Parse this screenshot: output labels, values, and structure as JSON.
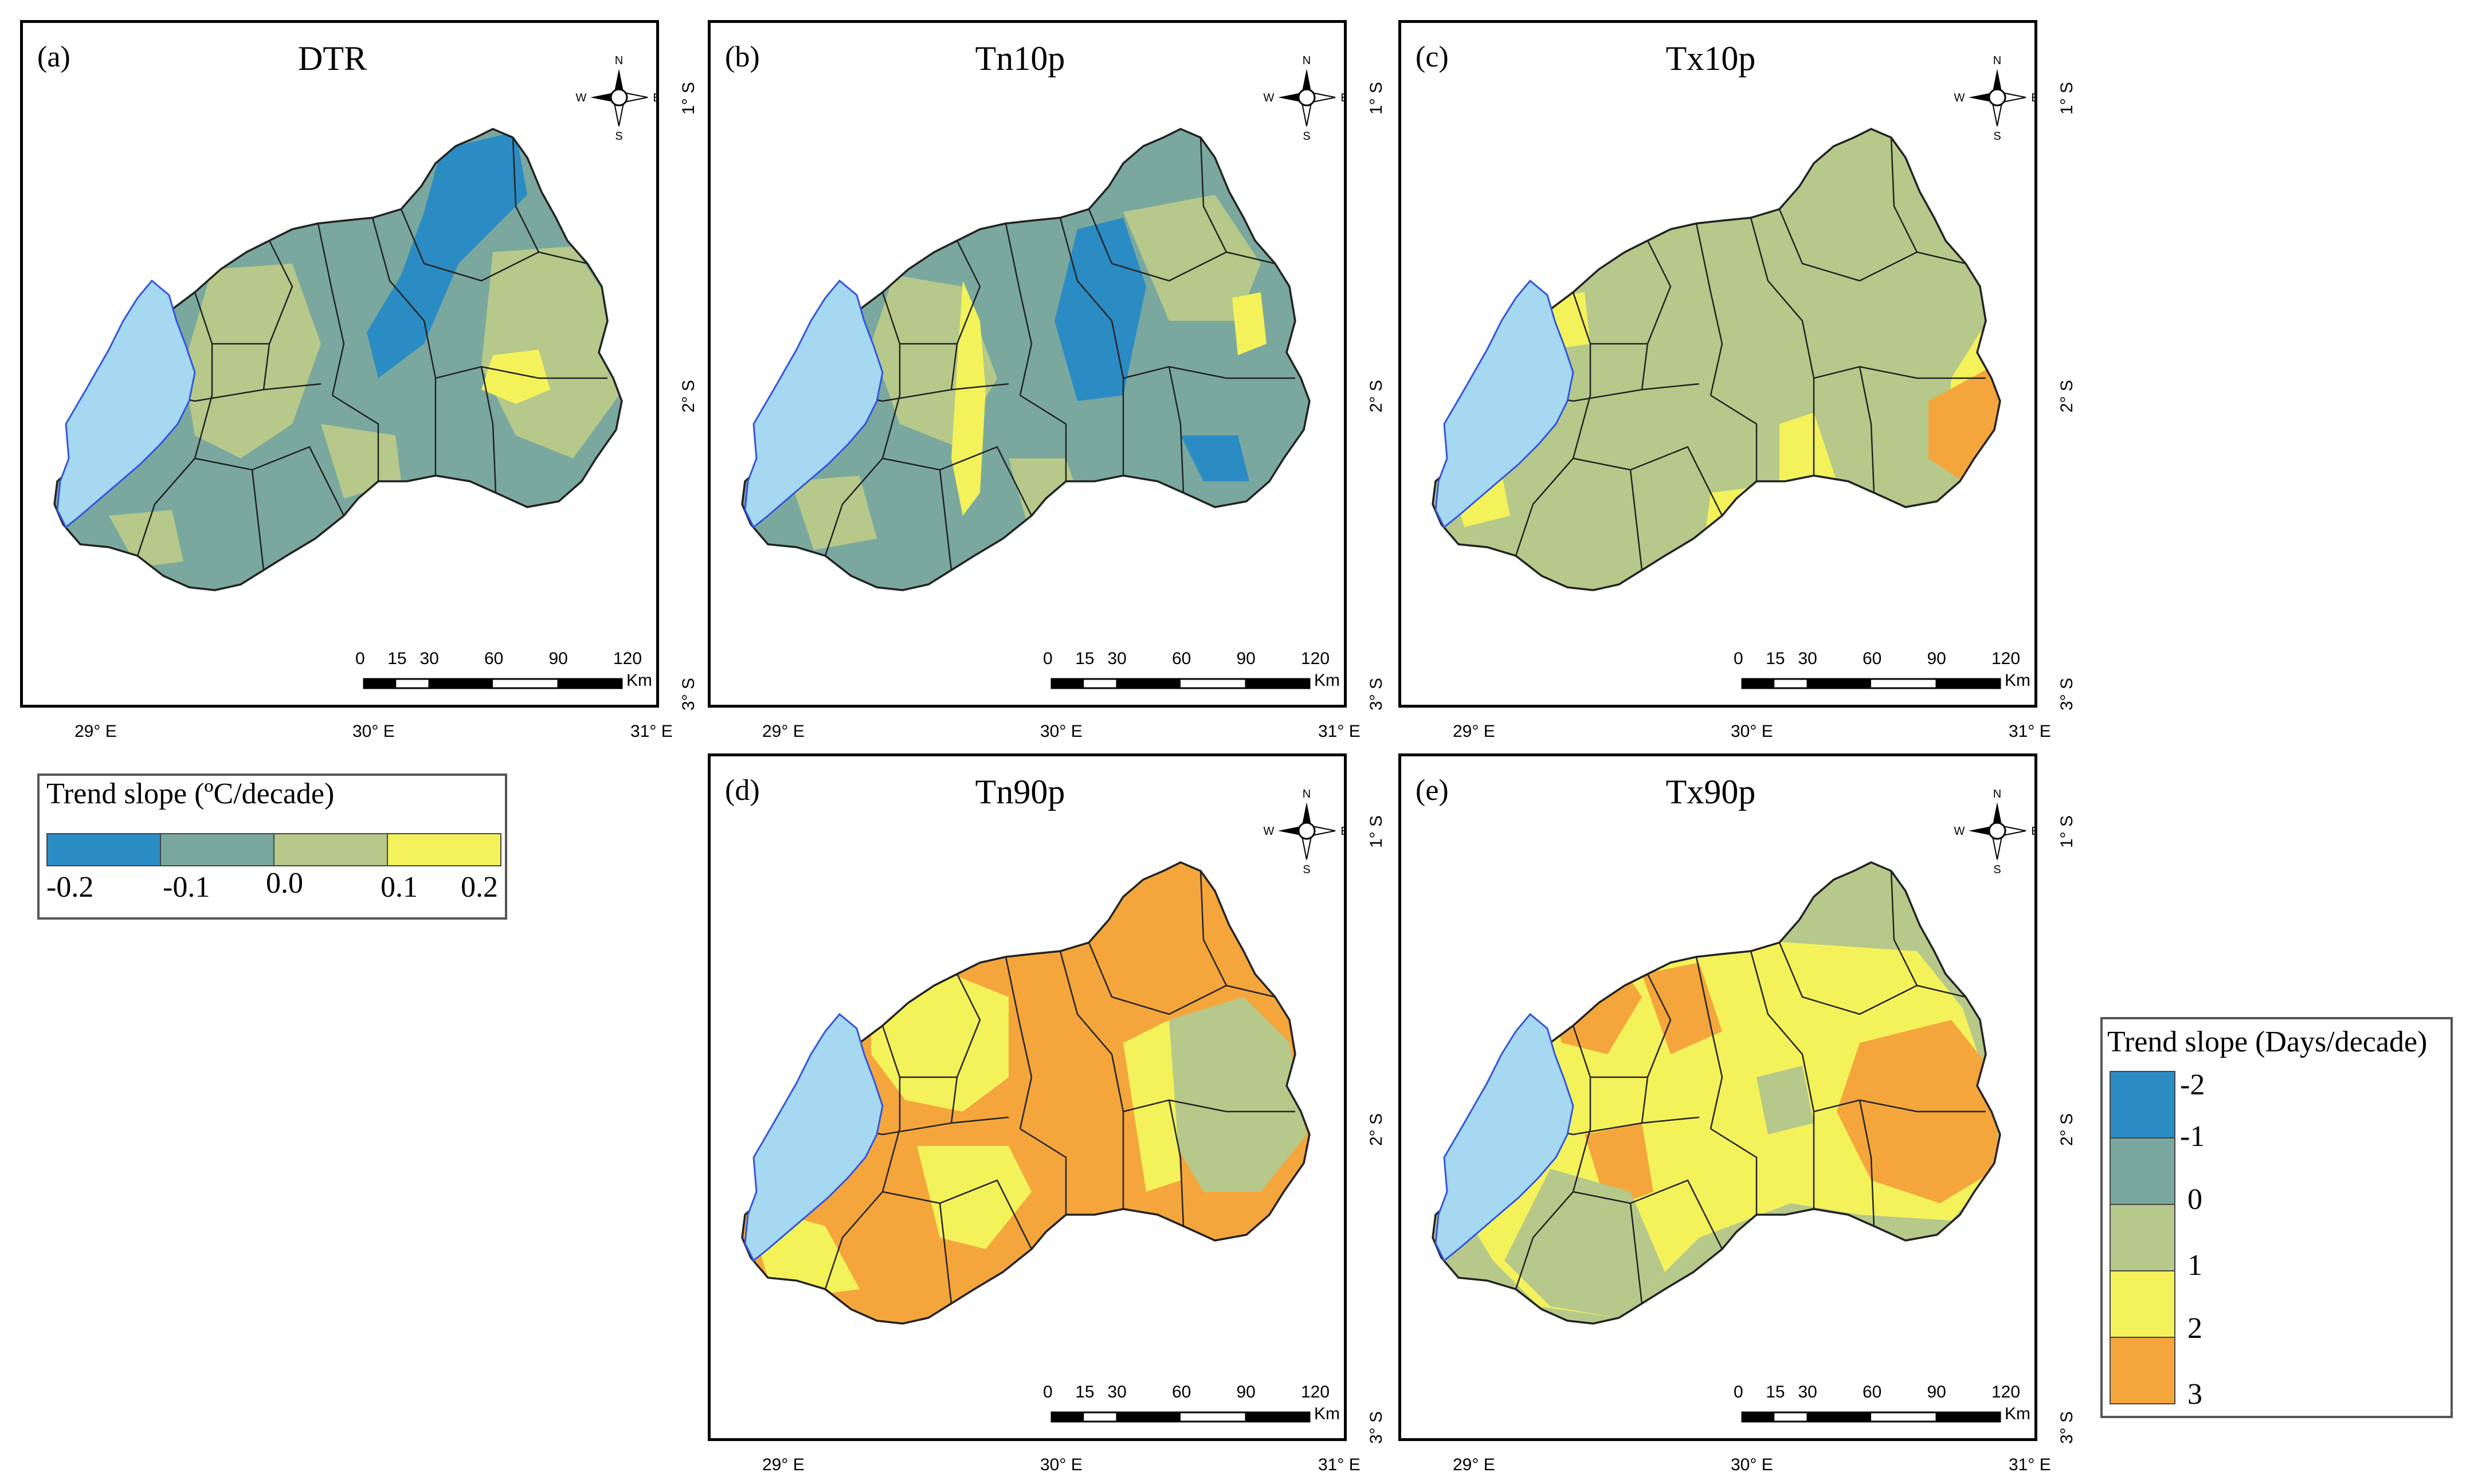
{
  "colors": {
    "class_m2": "#2b8cc4",
    "class_m1": "#7aa89e",
    "class_0": "#b6c98a",
    "class_1": "#f4f25a",
    "class_2": "#f4a63c",
    "lake": "#a6d8f2",
    "border": "#222222",
    "river": "#3355dd"
  },
  "panels": [
    {
      "id": "a",
      "label": "(a)",
      "title": "DTR",
      "palette": [
        "class_m1",
        "class_0",
        "class_m2",
        "class_1"
      ]
    },
    {
      "id": "b",
      "label": "(b)",
      "title": "Tn10p",
      "palette": [
        "class_m1",
        "class_0",
        "class_m2",
        "class_1"
      ]
    },
    {
      "id": "c",
      "label": "(c)",
      "title": "Tx10p",
      "palette": [
        "class_0",
        "class_1",
        "class_2"
      ]
    },
    {
      "id": "d",
      "label": "(d)",
      "title": "Tn90p",
      "palette": [
        "class_2",
        "class_1",
        "class_0"
      ]
    },
    {
      "id": "e",
      "label": "(e)",
      "title": "Tx90p",
      "palette": [
        "class_0",
        "class_1",
        "class_2"
      ]
    }
  ],
  "axes": {
    "lon_labels": [
      "29° E",
      "30° E",
      "31° E"
    ],
    "lat_labels": [
      "1° S",
      "2° S",
      "3° S"
    ]
  },
  "scale_bar": {
    "ticks": [
      "0",
      "15",
      "30",
      "60",
      "90",
      "120"
    ],
    "unit": "Km"
  },
  "compass": {
    "n": "N",
    "s": "S",
    "e": "E",
    "w": "W"
  },
  "legend_temp": {
    "title": "Trend slope (ºC/decade)",
    "labels": [
      "-0.2",
      "-0.1",
      "0.0",
      "0.1",
      "0.2"
    ],
    "colors": [
      "class_m2",
      "class_m1",
      "class_0",
      "class_1"
    ]
  },
  "legend_days": {
    "title": "Trend slope (Days/decade)",
    "labels": [
      "-2",
      "-1",
      "0",
      "1",
      "2",
      "3"
    ],
    "colors": [
      "class_m2",
      "class_m1",
      "class_0",
      "class_1",
      "class_2"
    ]
  }
}
